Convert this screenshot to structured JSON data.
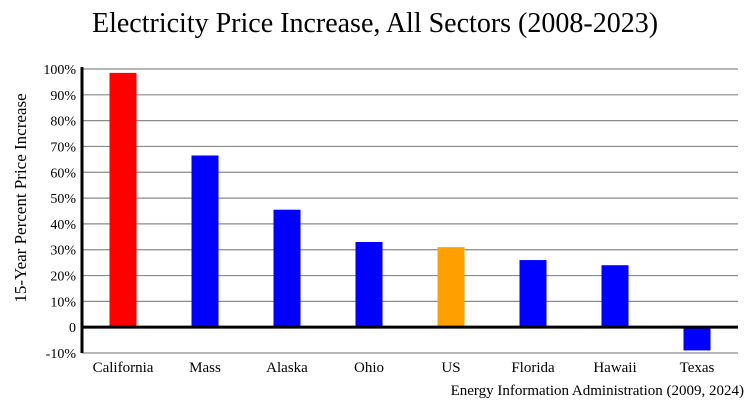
{
  "chart_data": {
    "type": "bar",
    "title": "Electricity Price Increase, All Sectors (2008-2023)",
    "ylabel": "15-Year Percent Price Increase",
    "xlabel": "",
    "source": "Energy Information Administration (2009, 2024)",
    "categories": [
      "California",
      "Mass",
      "Alaska",
      "Ohio",
      "US",
      "Florida",
      "Hawaii",
      "Texas"
    ],
    "values": [
      98.5,
      66.5,
      45.5,
      33,
      31,
      26,
      24,
      -9
    ],
    "colors": [
      "#ff0000",
      "#0000ff",
      "#0000ff",
      "#0000ff",
      "#ffa000",
      "#0000ff",
      "#0000ff",
      "#0000ff"
    ],
    "ylim": [
      -10,
      100
    ],
    "yticks": [
      -10,
      0,
      10,
      20,
      30,
      40,
      50,
      60,
      70,
      80,
      90,
      100
    ],
    "ytick_labels": [
      "-10%",
      "0",
      "10%",
      "20%",
      "30%",
      "40%",
      "50%",
      "60%",
      "70%",
      "80%",
      "90%",
      "100%"
    ],
    "grid": true,
    "legend": "none"
  }
}
